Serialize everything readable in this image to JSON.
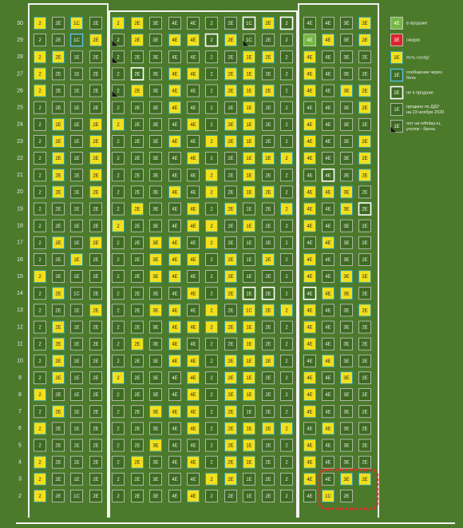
{
  "floors": [
    {
      "floor": 30,
      "cells": [
        [
          "2",
          "2E",
          "1C",
          "2E"
        ],
        [
          "2",
          "2E",
          "3E",
          "4E",
          "4E",
          "2",
          "2E",
          "1C",
          "2E",
          "2"
        ],
        [
          "4E",
          "4E",
          "3E",
          "2E"
        ]
      ],
      "status": [
        "ysys",
        "yyssssswyw",
        "sssy"
      ]
    },
    {
      "floor": 29,
      "cells": [
        [
          "2",
          "2E",
          "1C",
          "2E"
        ],
        [
          "2",
          "2E",
          "3E",
          "4E",
          "4E",
          "2",
          "2E",
          "1C",
          "2E",
          "2"
        ],
        [
          "4E",
          "4E",
          "3E",
          "2E"
        ]
      ],
      "status": [
        "ssby",
        "kysyywykss",
        "gysy"
      ]
    },
    {
      "floor": 28,
      "cells": [
        [
          "2",
          "2E",
          "1E",
          "2E"
        ],
        [
          "2",
          "2E",
          "3E",
          "4E",
          "4E",
          "2",
          "2E",
          "1E",
          "2E",
          "2"
        ],
        [
          "4E",
          "4E",
          "3E",
          "2E"
        ]
      ],
      "status": [
        "yyss",
        "kssssssyys",
        "ysss"
      ]
    },
    {
      "floor": 27,
      "cells": [
        [
          "2",
          "2E",
          "1E",
          "2E"
        ],
        [
          "2",
          "2E",
          "3E",
          "4E",
          "4E",
          "2",
          "2E",
          "1E",
          "2E",
          "2"
        ],
        [
          "4E",
          "4E",
          "3E",
          "2E"
        ]
      ],
      "status": [
        "ysss",
        "swsyysyyss",
        "ysss"
      ]
    },
    {
      "floor": 26,
      "cells": [
        [
          "2",
          "2E",
          "1E",
          "2E"
        ],
        [
          "2",
          "2E",
          "3E",
          "4E",
          "4E",
          "2",
          "2E",
          "1E",
          "2E",
          "2"
        ],
        [
          "4E",
          "4E",
          "3E",
          "2E"
        ]
      ],
      "status": [
        "ysss",
        "kysyssyyys",
        "ysyy"
      ]
    },
    {
      "floor": 25,
      "cells": [
        [
          "2",
          "2E",
          "1E",
          "2E"
        ],
        [
          "2",
          "2E",
          "3E",
          "4E",
          "4E",
          "2",
          "2E",
          "1E",
          "2E",
          "2"
        ],
        [
          "4E",
          "4E",
          "3E",
          "2E"
        ]
      ],
      "status": [
        "ssss",
        "sssysssyss",
        "sssy"
      ]
    },
    {
      "floor": 24,
      "cells": [
        [
          "2",
          "2E",
          "1E",
          "2E"
        ],
        [
          "2",
          "2E",
          "3E",
          "4E",
          "4E",
          "2",
          "2E",
          "1E",
          "2E",
          "2"
        ],
        [
          "4E",
          "4E",
          "3E",
          "2E"
        ]
      ],
      "status": [
        "sysy",
        "ysssysyyss",
        "ysss"
      ]
    },
    {
      "floor": 23,
      "cells": [
        [
          "2",
          "2E",
          "1E",
          "2E"
        ],
        [
          "2",
          "2E",
          "3E",
          "4E",
          "4E",
          "2",
          "2E",
          "1E",
          "2E",
          "2"
        ],
        [
          "4E",
          "4E",
          "3E",
          "2E"
        ]
      ],
      "status": [
        "sysy",
        "sssysyyyss",
        "yssy"
      ]
    },
    {
      "floor": 22,
      "cells": [
        [
          "2",
          "2E",
          "1E",
          "2E"
        ],
        [
          "2",
          "2E",
          "3E",
          "4E",
          "4E",
          "2",
          "2E",
          "1E",
          "2E",
          "2"
        ],
        [
          "4E",
          "4E",
          "3E",
          "2E"
        ]
      ],
      "status": [
        "sysy",
        "ssssyssyyy",
        "yssy"
      ]
    },
    {
      "floor": 21,
      "cells": [
        [
          "2",
          "2E",
          "1E",
          "2E"
        ],
        [
          "2",
          "2E",
          "3E",
          "4E",
          "4E",
          "2",
          "2E",
          "1E",
          "2E",
          "2"
        ],
        [
          "4E",
          "4E",
          "3E",
          "2E"
        ]
      ],
      "status": [
        "sysy",
        "sssssysyss",
        "swsy"
      ]
    },
    {
      "floor": 20,
      "cells": [
        [
          "2",
          "2E",
          "1E",
          "2E"
        ],
        [
          "2",
          "2E",
          "3E",
          "4E",
          "4E",
          "2",
          "2E",
          "1E",
          "2E",
          "2"
        ],
        [
          "4E",
          "4E",
          "3E",
          "2E"
        ]
      ],
      "status": [
        "sysy",
        "sssysysyys",
        "yyys"
      ]
    },
    {
      "floor": 19,
      "cells": [
        [
          "2",
          "2E",
          "1E",
          "2E"
        ],
        [
          "2",
          "2E",
          "3E",
          "4E",
          "4E",
          "2",
          "2E",
          "1E",
          "2E",
          "2"
        ],
        [
          "4E",
          "4E",
          "3E",
          "2E"
        ]
      ],
      "status": [
        "ssss",
        "syssysyssy",
        "ysyw"
      ]
    },
    {
      "floor": 18,
      "cells": [
        [
          "2",
          "2E",
          "1E",
          "2E"
        ],
        [
          "2",
          "2E",
          "3E",
          "4E",
          "4E",
          "2",
          "2E",
          "1E",
          "2E",
          "2"
        ],
        [
          "4E",
          "4E",
          "3E",
          "2E"
        ]
      ],
      "status": [
        "ssss",
        "ysssyysyss",
        "ysss"
      ]
    },
    {
      "floor": 17,
      "cells": [
        [
          "2",
          "2E",
          "1E",
          "2E"
        ],
        [
          "2",
          "2E",
          "3E",
          "4E",
          "4E",
          "2",
          "2E",
          "1E",
          "2E",
          "2"
        ],
        [
          "4E",
          "4E",
          "3E",
          "2E"
        ]
      ],
      "status": [
        "sysy",
        "ssyysyssss",
        "syss"
      ]
    },
    {
      "floor": 16,
      "cells": [
        [
          "2",
          "2E",
          "1E",
          "2E"
        ],
        [
          "2",
          "2E",
          "3E",
          "4E",
          "4E",
          "2",
          "2E",
          "1E",
          "2E",
          "2"
        ],
        [
          "4E",
          "4E",
          "3E",
          "2E"
        ]
      ],
      "status": [
        "ssys",
        "ssyyysysys",
        "ysss"
      ]
    },
    {
      "floor": 15,
      "cells": [
        [
          "2",
          "2E",
          "1E",
          "2E"
        ],
        [
          "2",
          "2E",
          "3E",
          "4E",
          "4E",
          "2",
          "2E",
          "1E",
          "2E",
          "2"
        ],
        [
          "4E",
          "4E",
          "3E",
          "2E"
        ]
      ],
      "status": [
        "ysss",
        "ssyyssysss",
        "ysyy"
      ]
    },
    {
      "floor": 14,
      "cells": [
        [
          "2",
          "2E",
          "1C",
          "2E"
        ],
        [
          "2",
          "2E",
          "3E",
          "4E",
          "4E",
          "2",
          "2E",
          "1E",
          "2E",
          "2"
        ],
        [
          "4E",
          "4E",
          "3E",
          "2E"
        ]
      ],
      "status": [
        "syss",
        "ssssysywws",
        "wyys"
      ]
    },
    {
      "floor": 13,
      "cells": [
        [
          "2",
          "2E",
          "1E",
          "2E"
        ],
        [
          "2",
          "2E",
          "3E",
          "4E",
          "4E",
          "2",
          "2E",
          "1C",
          "2E",
          "2"
        ],
        [
          "4E",
          "4E",
          "3E",
          "2E"
        ]
      ],
      "status": [
        "sssy",
        "ssyysysyyy",
        "yssy"
      ]
    },
    {
      "floor": 12,
      "cells": [
        [
          "2",
          "2E",
          "1E",
          "2E"
        ],
        [
          "2",
          "2E",
          "3E",
          "4E",
          "4E",
          "2",
          "2E",
          "1E",
          "2E",
          "2"
        ],
        [
          "4E",
          "4E",
          "3E",
          "2E"
        ]
      ],
      "status": [
        "syss",
        "sssyyyyyss",
        "ysss"
      ]
    },
    {
      "floor": 11,
      "cells": [
        [
          "2",
          "2E",
          "1E",
          "2E"
        ],
        [
          "2",
          "2E",
          "3E",
          "4E",
          "4E",
          "2",
          "2E",
          "1E",
          "2E",
          "2"
        ],
        [
          "4E",
          "4E",
          "3E",
          "2E"
        ]
      ],
      "status": [
        "syss",
        "sysysssyss",
        "ysss"
      ]
    },
    {
      "floor": 10,
      "cells": [
        [
          "2",
          "2E",
          "1E",
          "2E"
        ],
        [
          "2",
          "2E",
          "3E",
          "4E",
          "4E",
          "2",
          "2E",
          "1E",
          "2E",
          "2"
        ],
        [
          "4E",
          "4E",
          "3E",
          "2E"
        ]
      ],
      "status": [
        "syss",
        "sssyysyyys",
        "syss"
      ]
    },
    {
      "floor": 9,
      "cells": [
        [
          "2",
          "2E",
          "1E",
          "2E"
        ],
        [
          "2",
          "2E",
          "3E",
          "4E",
          "4E",
          "2",
          "2E",
          "1E",
          "2E",
          "2"
        ],
        [
          "4E",
          "4E",
          "3E",
          "2E"
        ]
      ],
      "status": [
        "syss",
        "ysssysyyss",
        "ysys"
      ]
    },
    {
      "floor": 8,
      "cells": [
        [
          "2",
          "2E",
          "1E",
          "2E"
        ],
        [
          "2",
          "2E",
          "3E",
          "4E",
          "4E",
          "2",
          "2E",
          "1E",
          "2E",
          "2"
        ],
        [
          "4E",
          "4E",
          "3E",
          "2E"
        ]
      ],
      "status": [
        "ysss",
        "ssssysyyss",
        "ysss"
      ]
    },
    {
      "floor": 7,
      "cells": [
        [
          "2",
          "2E",
          "1E",
          "2E"
        ],
        [
          "2",
          "2E",
          "3E",
          "4E",
          "4E",
          "2",
          "2E",
          "1E",
          "2E",
          "2"
        ],
        [
          "4E",
          "4E",
          "3E",
          "2E"
        ]
      ],
      "status": [
        "syss",
        "ssyyysysss",
        "ysss"
      ]
    },
    {
      "floor": 6,
      "cells": [
        [
          "2",
          "2E",
          "1E",
          "2E"
        ],
        [
          "2",
          "2E",
          "3E",
          "4E",
          "4E",
          "2",
          "2E",
          "1E",
          "2E",
          "2"
        ],
        [
          "4E",
          "4E",
          "3E",
          "2E"
        ]
      ],
      "status": [
        "ysss",
        "ssssysyyyy",
        "syss"
      ]
    },
    {
      "floor": 5,
      "cells": [
        [
          "2",
          "2E",
          "1E",
          "2E"
        ],
        [
          "2",
          "2E",
          "3E",
          "4E",
          "4E",
          "2",
          "2E",
          "1E",
          "2E",
          "2"
        ],
        [
          "4E",
          "4E",
          "3E",
          "2E"
        ]
      ],
      "status": [
        "ssss",
        "ssysssyyss",
        "ysss"
      ]
    },
    {
      "floor": 4,
      "cells": [
        [
          "2",
          "2E",
          "1E",
          "2E"
        ],
        [
          "2",
          "2E",
          "3E",
          "4E",
          "4E",
          "2",
          "2E",
          "1E",
          "2E",
          "2"
        ],
        [
          "4E",
          "4E",
          "3E",
          "2E"
        ]
      ],
      "status": [
        "ysss",
        "syssysyyss",
        "ysss"
      ]
    },
    {
      "floor": 3,
      "cells": [
        [
          "2",
          "2E",
          "1E",
          "2E"
        ],
        [
          "2",
          "2E",
          "3E",
          "4E",
          "4E",
          "2",
          "2E",
          "1E",
          "2E",
          "2"
        ],
        [
          "4E",
          "4E",
          "3E",
          "2E"
        ]
      ],
      "status": [
        "ysss",
        "sssssyysss",
        "ysyy"
      ]
    },
    {
      "floor": 2,
      "cells": [
        [
          "2",
          "2E",
          "1C",
          "2E"
        ],
        [
          "2",
          "2E",
          "3E",
          "4E",
          "4E",
          "2",
          "2E",
          "1E",
          "2E",
          "2"
        ],
        [
          "4E",
          "1C",
          "2E"
        ]
      ],
      "status": [
        "ysss",
        "ssssysssss",
        "sys"
      ]
    }
  ],
  "legend": [
    {
      "label": "4E",
      "status": "g",
      "lines": [
        "в продаже"
      ]
    },
    {
      "label": "3E",
      "status": "r",
      "lines": [
        "скидка"
      ]
    },
    {
      "label": "2E",
      "status": "y",
      "lines": [
        "есть сосед!"
      ]
    },
    {
      "label": "1E",
      "status": "b",
      "lines": [
        "сообщение через",
        "бота"
      ]
    },
    {
      "label": "2E",
      "status": "w",
      "lines": [
        "не в продаже"
      ]
    },
    {
      "label": "1E",
      "status": "s",
      "lines": [
        "продано по ДДУ",
        "на 23 ноября 2020"
      ]
    },
    {
      "label": "1E",
      "status": "k",
      "lines": [
        "лот на refriday.ru,",
        "уголок - бронь"
      ]
    }
  ]
}
